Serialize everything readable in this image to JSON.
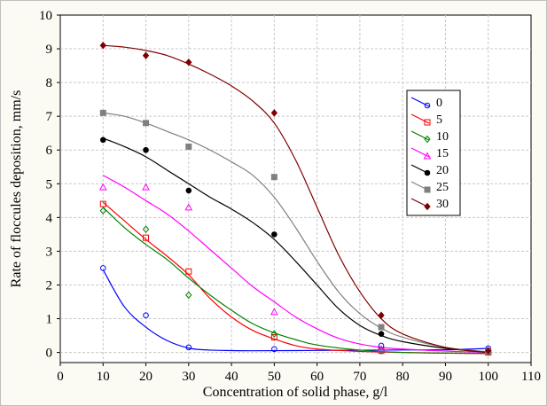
{
  "chart_data": {
    "type": "scatter",
    "title": "",
    "xlabel": "Concentration of solid phase, g/l",
    "ylabel": "Rate of floccules deposition, mm/s",
    "xlim": [
      0,
      110
    ],
    "ylim": [
      -0.3,
      10
    ],
    "xticks": [
      0,
      10,
      20,
      30,
      40,
      50,
      60,
      70,
      80,
      90,
      100,
      110
    ],
    "yticks": [
      0,
      1,
      2,
      3,
      4,
      5,
      6,
      7,
      8,
      9,
      10
    ],
    "grid": true,
    "legend_position": "right",
    "x": [
      10,
      20,
      30,
      50,
      75,
      100
    ],
    "series": [
      {
        "name": "0",
        "color": "#0000ff",
        "marker": "circle-open",
        "values": [
          2.5,
          1.1,
          0.15,
          0.1,
          0.2,
          0.12
        ],
        "fit": [
          [
            10,
            2.45
          ],
          [
            15,
            1.35
          ],
          [
            20,
            0.75
          ],
          [
            25,
            0.35
          ],
          [
            30,
            0.13
          ],
          [
            35,
            0.07
          ],
          [
            45,
            0.05
          ],
          [
            60,
            0.06
          ],
          [
            75,
            0.07
          ],
          [
            90,
            0.08
          ],
          [
            100,
            0.12
          ]
        ]
      },
      {
        "name": "5",
        "color": "#ff0000",
        "marker": "square-open",
        "values": [
          4.4,
          3.4,
          2.4,
          0.45,
          0.05,
          0.0
        ],
        "fit": [
          [
            10,
            4.45
          ],
          [
            15,
            3.9
          ],
          [
            20,
            3.35
          ],
          [
            25,
            2.85
          ],
          [
            30,
            2.3
          ],
          [
            35,
            1.6
          ],
          [
            40,
            1.05
          ],
          [
            45,
            0.65
          ],
          [
            50,
            0.4
          ],
          [
            55,
            0.2
          ],
          [
            60,
            0.1
          ],
          [
            70,
            0.03
          ],
          [
            80,
            0.0
          ],
          [
            90,
            -0.02
          ],
          [
            100,
            -0.03
          ]
        ]
      },
      {
        "name": "10",
        "color": "#008000",
        "marker": "diamond-open",
        "values": [
          4.2,
          3.65,
          1.7,
          0.55,
          0.05,
          0.02
        ],
        "fit": [
          [
            10,
            4.3
          ],
          [
            15,
            3.7
          ],
          [
            20,
            3.2
          ],
          [
            25,
            2.75
          ],
          [
            30,
            2.2
          ],
          [
            35,
            1.7
          ],
          [
            40,
            1.25
          ],
          [
            45,
            0.85
          ],
          [
            50,
            0.58
          ],
          [
            55,
            0.38
          ],
          [
            60,
            0.22
          ],
          [
            70,
            0.07
          ],
          [
            80,
            0.0
          ],
          [
            90,
            -0.02
          ],
          [
            100,
            -0.03
          ]
        ]
      },
      {
        "name": "15",
        "color": "#ff00ff",
        "marker": "triangle-open",
        "values": [
          4.9,
          4.9,
          4.3,
          1.2,
          0.1,
          0.05
        ],
        "fit": [
          [
            10,
            5.25
          ],
          [
            15,
            4.9
          ],
          [
            20,
            4.5
          ],
          [
            25,
            4.1
          ],
          [
            30,
            3.6
          ],
          [
            35,
            3.05
          ],
          [
            40,
            2.5
          ],
          [
            45,
            1.95
          ],
          [
            50,
            1.5
          ],
          [
            55,
            1.05
          ],
          [
            60,
            0.7
          ],
          [
            65,
            0.42
          ],
          [
            70,
            0.25
          ],
          [
            75,
            0.15
          ],
          [
            80,
            0.1
          ],
          [
            90,
            0.04
          ],
          [
            100,
            0.0
          ]
        ]
      },
      {
        "name": "20",
        "color": "#000000",
        "marker": "circle-filled",
        "values": [
          6.3,
          6.0,
          4.8,
          3.5,
          0.55,
          0.05
        ],
        "fit": [
          [
            10,
            6.35
          ],
          [
            15,
            6.1
          ],
          [
            20,
            5.8
          ],
          [
            25,
            5.4
          ],
          [
            30,
            5.0
          ],
          [
            35,
            4.6
          ],
          [
            40,
            4.25
          ],
          [
            45,
            3.85
          ],
          [
            50,
            3.35
          ],
          [
            55,
            2.7
          ],
          [
            60,
            2.0
          ],
          [
            65,
            1.3
          ],
          [
            70,
            0.8
          ],
          [
            75,
            0.5
          ],
          [
            80,
            0.32
          ],
          [
            90,
            0.12
          ],
          [
            100,
            0.0
          ]
        ]
      },
      {
        "name": "25",
        "color": "#808080",
        "marker": "square-filled",
        "values": [
          7.1,
          6.8,
          6.1,
          5.2,
          0.75,
          0.03
        ],
        "fit": [
          [
            10,
            7.1
          ],
          [
            15,
            7.0
          ],
          [
            20,
            6.8
          ],
          [
            25,
            6.55
          ],
          [
            30,
            6.3
          ],
          [
            35,
            6.0
          ],
          [
            40,
            5.65
          ],
          [
            45,
            5.25
          ],
          [
            50,
            4.6
          ],
          [
            55,
            3.7
          ],
          [
            60,
            2.7
          ],
          [
            65,
            1.8
          ],
          [
            70,
            1.15
          ],
          [
            75,
            0.72
          ],
          [
            80,
            0.45
          ],
          [
            90,
            0.15
          ],
          [
            100,
            0.02
          ]
        ]
      },
      {
        "name": "30",
        "color": "#800000",
        "marker": "diamond-filled",
        "values": [
          9.1,
          8.8,
          8.6,
          7.1,
          1.1,
          0.05
        ],
        "fit": [
          [
            10,
            9.1
          ],
          [
            15,
            9.05
          ],
          [
            20,
            8.95
          ],
          [
            25,
            8.8
          ],
          [
            30,
            8.55
          ],
          [
            35,
            8.25
          ],
          [
            40,
            7.9
          ],
          [
            45,
            7.45
          ],
          [
            50,
            6.8
          ],
          [
            55,
            5.7
          ],
          [
            60,
            4.3
          ],
          [
            65,
            2.9
          ],
          [
            70,
            1.8
          ],
          [
            75,
            1.0
          ],
          [
            80,
            0.55
          ],
          [
            90,
            0.15
          ],
          [
            100,
            0.0
          ]
        ]
      }
    ]
  }
}
